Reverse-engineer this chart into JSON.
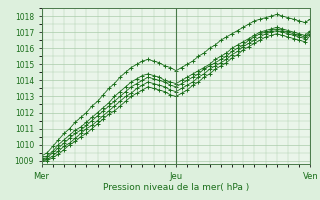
{
  "title": "",
  "xlabel": "Pression niveau de la mer( hPa )",
  "ylabel": "",
  "bg_color": "#ddf0dd",
  "plot_bg_color": "#eaf5ea",
  "grid_color": "#aaccaa",
  "line_color": "#1a6e1a",
  "ylim": [
    1008.8,
    1018.5
  ],
  "xlim": [
    0,
    96
  ],
  "yticks": [
    1009,
    1010,
    1011,
    1012,
    1013,
    1014,
    1015,
    1016,
    1017,
    1018
  ],
  "xtick_labels": [
    "Mer",
    "Jeu",
    "Ven"
  ],
  "xtick_positions": [
    0,
    48,
    96
  ],
  "series": [
    [
      1009.2,
      1009.3,
      1009.6,
      1010.0,
      1010.3,
      1010.6,
      1010.9,
      1011.1,
      1011.4,
      1011.7,
      1012.0,
      1012.3,
      1012.6,
      1013.0,
      1013.3,
      1013.6,
      1013.9,
      1014.1,
      1014.3,
      1014.4,
      1014.3,
      1014.2,
      1014.0,
      1013.9,
      1013.8,
      1014.0,
      1014.2,
      1014.4,
      1014.6,
      1014.8,
      1015.0,
      1015.3,
      1015.5,
      1015.7,
      1016.0,
      1016.2,
      1016.4,
      1016.6,
      1016.8,
      1017.0,
      1017.1,
      1017.2,
      1017.3,
      1017.2,
      1017.1,
      1017.0,
      1016.9,
      1016.8,
      1017.1
    ],
    [
      1009.1,
      1009.2,
      1009.5,
      1009.8,
      1010.1,
      1010.4,
      1010.7,
      1010.9,
      1011.2,
      1011.5,
      1011.8,
      1012.1,
      1012.4,
      1012.7,
      1013.0,
      1013.3,
      1013.6,
      1013.8,
      1014.0,
      1014.2,
      1014.1,
      1014.0,
      1013.9,
      1013.7,
      1013.6,
      1013.8,
      1014.0,
      1014.2,
      1014.4,
      1014.7,
      1014.9,
      1015.1,
      1015.3,
      1015.5,
      1015.8,
      1016.0,
      1016.2,
      1016.5,
      1016.7,
      1016.9,
      1017.0,
      1017.1,
      1017.2,
      1017.1,
      1017.0,
      1016.9,
      1016.8,
      1016.7,
      1017.0
    ],
    [
      1009.0,
      1009.1,
      1009.3,
      1009.6,
      1009.9,
      1010.1,
      1010.4,
      1010.7,
      1011.0,
      1011.2,
      1011.5,
      1011.8,
      1012.1,
      1012.4,
      1012.7,
      1013.0,
      1013.2,
      1013.5,
      1013.7,
      1013.9,
      1013.8,
      1013.7,
      1013.6,
      1013.4,
      1013.3,
      1013.5,
      1013.7,
      1013.9,
      1014.2,
      1014.4,
      1014.7,
      1014.9,
      1015.1,
      1015.3,
      1015.6,
      1015.8,
      1016.1,
      1016.3,
      1016.5,
      1016.7,
      1016.9,
      1017.0,
      1017.1,
      1017.0,
      1016.9,
      1016.8,
      1016.7,
      1016.6,
      1016.9
    ],
    [
      1009.0,
      1009.0,
      1009.2,
      1009.4,
      1009.7,
      1010.0,
      1010.2,
      1010.5,
      1010.7,
      1011.0,
      1011.3,
      1011.6,
      1011.9,
      1012.1,
      1012.4,
      1012.7,
      1013.0,
      1013.2,
      1013.4,
      1013.6,
      1013.5,
      1013.4,
      1013.3,
      1013.1,
      1013.0,
      1013.2,
      1013.4,
      1013.7,
      1013.9,
      1014.2,
      1014.4,
      1014.7,
      1014.9,
      1015.1,
      1015.4,
      1015.6,
      1015.9,
      1016.1,
      1016.3,
      1016.5,
      1016.7,
      1016.8,
      1016.9,
      1016.8,
      1016.7,
      1016.6,
      1016.5,
      1016.4,
      1016.8
    ],
    [
      1009.3,
      1009.5,
      1009.9,
      1010.3,
      1010.7,
      1011.0,
      1011.4,
      1011.7,
      1012.0,
      1012.4,
      1012.7,
      1013.1,
      1013.5,
      1013.8,
      1014.2,
      1014.5,
      1014.8,
      1015.0,
      1015.2,
      1015.3,
      1015.2,
      1015.1,
      1014.9,
      1014.8,
      1014.6,
      1014.8,
      1015.0,
      1015.2,
      1015.5,
      1015.7,
      1016.0,
      1016.2,
      1016.5,
      1016.7,
      1016.9,
      1017.1,
      1017.3,
      1017.5,
      1017.7,
      1017.8,
      1017.9,
      1018.0,
      1018.1,
      1018.0,
      1017.9,
      1017.8,
      1017.7,
      1017.6,
      1017.8
    ]
  ]
}
